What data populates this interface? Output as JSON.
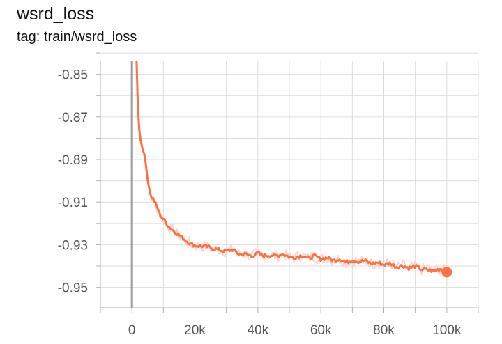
{
  "card": {
    "title": "wsrd_loss",
    "tag": "tag: train/wsrd_loss"
  },
  "chart_data": {
    "type": "line",
    "x_unit": "step",
    "y_ticks": [
      "-0.85",
      "-0.87",
      "-0.89",
      "-0.91",
      "-0.93",
      "-0.95"
    ],
    "y_tick_values": [
      -0.85,
      -0.87,
      -0.89,
      -0.91,
      -0.93,
      -0.95
    ],
    "x_ticks": [
      "0",
      "20k",
      "40k",
      "60k",
      "80k",
      "100k"
    ],
    "x_tick_values": [
      0,
      20000,
      40000,
      60000,
      80000,
      100000
    ],
    "xlim": [
      -10000,
      110000
    ],
    "ylim": [
      -0.9596,
      -0.8439
    ],
    "grid": true,
    "colors": {
      "smoothed": "#ff7043",
      "raw": "#fdd7cb",
      "grid": "#dcdcdc",
      "zero_axis": "#999999"
    },
    "series": [
      {
        "x": [
          1500,
          2000,
          2500,
          3000,
          3500,
          4000,
          4500,
          5000,
          6000,
          7000,
          8000,
          9000,
          10000,
          12000,
          14000,
          16000,
          18000,
          20000,
          22000,
          24000,
          26000,
          28000,
          30000,
          32000,
          34000,
          36000,
          38000,
          40000,
          42000,
          44000,
          46000,
          48000,
          50000,
          52000,
          54000,
          56000,
          58000,
          60000,
          62000,
          64000,
          66000,
          68000,
          70000,
          72000,
          74000,
          76000,
          78000,
          80000,
          82000,
          84000,
          86000,
          88000,
          90000,
          92000,
          94000,
          96000,
          98000,
          100000
        ],
        "y": [
          -0.8445,
          -0.869,
          -0.8792,
          -0.8823,
          -0.8856,
          -0.888,
          -0.8926,
          -0.8998,
          -0.9072,
          -0.9092,
          -0.9123,
          -0.9162,
          -0.918,
          -0.922,
          -0.9243,
          -0.9266,
          -0.929,
          -0.9304,
          -0.9306,
          -0.931,
          -0.9318,
          -0.9325,
          -0.933,
          -0.9322,
          -0.9345,
          -0.9343,
          -0.9353,
          -0.9341,
          -0.9352,
          -0.9348,
          -0.9353,
          -0.9342,
          -0.9358,
          -0.936,
          -0.9349,
          -0.9364,
          -0.9352,
          -0.9368,
          -0.936,
          -0.9374,
          -0.9366,
          -0.9382,
          -0.9372,
          -0.938,
          -0.9374,
          -0.939,
          -0.9383,
          -0.9394,
          -0.9387,
          -0.9405,
          -0.9398,
          -0.941,
          -0.9402,
          -0.9416,
          -0.9419,
          -0.9424,
          -0.9412,
          -0.9429
        ]
      }
    ]
  }
}
